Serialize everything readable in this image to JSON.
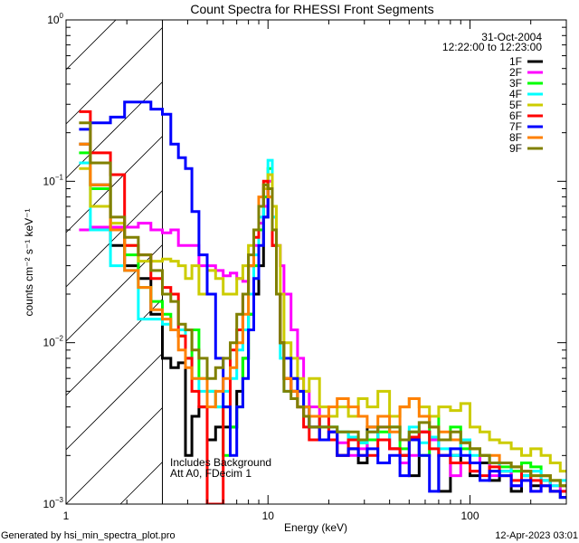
{
  "chart_data": {
    "type": "line",
    "step": true,
    "title": "Count Spectra for RHESSI Front Segments",
    "xlabel": "Energy (keV)",
    "ylabel": "counts cm⁻² s⁻¹ keV⁻¹",
    "xscale": "log",
    "yscale": "log",
    "xlim": [
      1,
      300
    ],
    "ylim": [
      0.001,
      1
    ],
    "xticks": [
      {
        "v": 1,
        "label": "1"
      },
      {
        "v": 10,
        "label": "10"
      },
      {
        "v": 100,
        "label": "100"
      }
    ],
    "yticks": [
      {
        "v": 1,
        "base": "10",
        "exp": "0"
      },
      {
        "v": 0.1,
        "base": "10",
        "exp": "−1"
      },
      {
        "v": 0.01,
        "base": "10",
        "exp": "−2"
      },
      {
        "v": 0.001,
        "base": "10",
        "exp": "−3"
      }
    ],
    "grid": false,
    "hatched_region_keV": [
      1,
      3
    ],
    "legend_position": "top-right",
    "legend_header": [
      "31-Oct-2004",
      "12:22:00 to 12:23:00"
    ],
    "annotations": [
      "Includes Background",
      "Att A0, FDecim 1"
    ],
    "bin_edges_keV": [
      1.16,
      1.32,
      1.66,
      1.95,
      2.28,
      2.63,
      3.0,
      3.3,
      3.6,
      3.9,
      4.2,
      4.55,
      5.0,
      5.5,
      6.0,
      6.5,
      7.0,
      7.5,
      8.0,
      8.5,
      9.0,
      9.5,
      10.0,
      10.5,
      11.0,
      11.5,
      12.0,
      13,
      14,
      15,
      16,
      18,
      20,
      22,
      25,
      28,
      31,
      35,
      40,
      45,
      50,
      56,
      63,
      70,
      80,
      90,
      100,
      112,
      125,
      140,
      160,
      180,
      200,
      225,
      250,
      280,
      300
    ],
    "series": [
      {
        "name": "1F",
        "color": "#000000",
        "values": [
          0.17,
          0.095,
          0.04,
          0.03,
          0.025,
          0.015,
          0.008,
          0.007,
          0.0075,
          0.002,
          0.0035,
          0.004,
          0.0025,
          0.003,
          0.003,
          0.003,
          0.005,
          0.008,
          0.015,
          0.02,
          0.03,
          0.06,
          0.09,
          0.04,
          0.02,
          0.01,
          0.006,
          0.005,
          0.004,
          0.0035,
          0.003,
          0.0025,
          0.0028,
          0.002,
          0.0022,
          0.0018,
          0.003,
          0.0025,
          0.0022,
          0.002,
          0.0015,
          0.0028,
          0.0025,
          0.0012,
          0.002,
          0.0018,
          0.0015,
          0.0018,
          0.0014,
          0.0016,
          0.0012,
          0.0015,
          0.0013,
          0.0014,
          0.0012,
          0.0011
        ]
      },
      {
        "name": "2F",
        "color": "#ff00ff",
        "values": [
          0.05,
          0.052,
          0.052,
          0.052,
          0.055,
          0.05,
          0.048,
          0.05,
          0.04,
          0.04,
          0.04,
          0.03,
          0.03,
          0.028,
          0.026,
          0.027,
          0.025,
          0.024,
          0.03,
          0.04,
          0.055,
          0.07,
          0.1,
          0.06,
          0.04,
          0.03,
          0.02,
          0.012,
          0.008,
          0.005,
          0.004,
          0.003,
          0.0028,
          0.0024,
          0.002,
          0.0022,
          0.0025,
          0.003,
          0.0022,
          0.0018,
          0.002,
          0.0028,
          0.0025,
          0.002,
          0.0015,
          0.0018,
          0.0016,
          0.002,
          0.0015,
          0.0016,
          0.0013,
          0.0014,
          0.0012,
          0.0015,
          0.0013,
          0.0012
        ]
      },
      {
        "name": "3F",
        "color": "#00ff00",
        "values": [
          0.15,
          0.09,
          0.05,
          0.035,
          0.022,
          0.018,
          0.015,
          0.012,
          0.011,
          0.008,
          0.012,
          0.006,
          0.005,
          0.004,
          0.002,
          0.003,
          0.004,
          0.008,
          0.015,
          0.03,
          0.05,
          0.08,
          0.12,
          0.05,
          0.02,
          0.01,
          0.006,
          0.006,
          0.005,
          0.004,
          0.0035,
          0.003,
          0.003,
          0.0028,
          0.0025,
          0.0024,
          0.0025,
          0.0028,
          0.003,
          0.0022,
          0.0028,
          0.002,
          0.0035,
          0.0025,
          0.003,
          0.0022,
          0.0022,
          0.002,
          0.0018,
          0.0017,
          0.0016,
          0.0018,
          0.0017,
          0.0015,
          0.0014,
          0.0013
        ]
      },
      {
        "name": "4F",
        "color": "#00ffff",
        "values": [
          0.13,
          0.05,
          0.03,
          0.028,
          0.014,
          0.014,
          0.013,
          0.012,
          0.012,
          0.008,
          0.006,
          0.005,
          0.005,
          0.004,
          0.005,
          0.006,
          0.009,
          0.012,
          0.02,
          0.035,
          0.06,
          0.09,
          0.135,
          0.06,
          0.02,
          0.008,
          0.005,
          0.005,
          0.004,
          0.004,
          0.0035,
          0.003,
          0.003,
          0.0028,
          0.0026,
          0.0024,
          0.0028,
          0.0025,
          0.003,
          0.0025,
          0.003,
          0.0024,
          0.0026,
          0.0022,
          0.002,
          0.0025,
          0.002,
          0.002,
          0.0018,
          0.0016,
          0.0017,
          0.0015,
          0.0016,
          0.0014,
          0.0013,
          0.0014
        ]
      },
      {
        "name": "5F",
        "color": "#cccc00",
        "values": [
          0.12,
          0.07,
          0.055,
          0.04,
          0.032,
          0.032,
          0.033,
          0.032,
          0.03,
          0.025,
          0.03,
          0.02,
          0.028,
          0.025,
          0.02,
          0.02,
          0.025,
          0.03,
          0.04,
          0.05,
          0.07,
          0.09,
          0.11,
          0.07,
          0.04,
          0.02,
          0.01,
          0.008,
          0.006,
          0.005,
          0.006,
          0.004,
          0.0035,
          0.004,
          0.0035,
          0.0045,
          0.004,
          0.005,
          0.0035,
          0.004,
          0.0045,
          0.004,
          0.0035,
          0.004,
          0.0038,
          0.0042,
          0.003,
          0.0028,
          0.0025,
          0.0024,
          0.0022,
          0.002,
          0.0022,
          0.002,
          0.0018,
          0.0016
        ]
      },
      {
        "name": "6F",
        "color": "#ff0000",
        "values": [
          0.27,
          0.15,
          0.11,
          0.04,
          0.035,
          0.025,
          0.022,
          0.02,
          0.011,
          0.008,
          0.005,
          0.004,
          0.0008,
          0.0008,
          0.004,
          0.009,
          0.012,
          0.02,
          0.03,
          0.045,
          0.07,
          0.1,
          0.08,
          0.04,
          0.02,
          0.01,
          0.006,
          0.005,
          0.004,
          0.003,
          0.0025,
          0.0035,
          0.0025,
          0.002,
          0.0025,
          0.002,
          0.002,
          0.0025,
          0.0022,
          0.002,
          0.0026,
          0.0028,
          0.0022,
          0.002,
          0.0018,
          0.0018,
          0.0016,
          0.0015,
          0.0017,
          0.0015,
          0.0014,
          0.0016,
          0.0014,
          0.0013,
          0.0012,
          0.0012
        ]
      },
      {
        "name": "7F",
        "color": "#0000ff",
        "values": [
          0.21,
          0.23,
          0.25,
          0.31,
          0.31,
          0.28,
          0.26,
          0.17,
          0.14,
          0.12,
          0.065,
          0.035,
          0.02,
          0.008,
          0.004,
          0.002,
          0.004,
          0.006,
          0.012,
          0.025,
          0.04,
          0.06,
          0.09,
          0.05,
          0.02,
          0.01,
          0.008,
          0.006,
          0.005,
          0.004,
          0.003,
          0.0025,
          0.0028,
          0.002,
          0.0022,
          0.002,
          0.0022,
          0.0018,
          0.002,
          0.0015,
          0.0025,
          0.002,
          0.0012,
          0.002,
          0.0022,
          0.002,
          0.0018,
          0.0014,
          0.0016,
          0.0015,
          0.0013,
          0.0014,
          0.0012,
          0.0013,
          0.0012,
          0.0011
        ]
      },
      {
        "name": "8F",
        "color": "#ff8000",
        "values": [
          0.17,
          0.095,
          0.05,
          0.028,
          0.022,
          0.016,
          0.014,
          0.012,
          0.009,
          0.007,
          0.006,
          0.006,
          0.004,
          0.005,
          0.006,
          0.007,
          0.01,
          0.015,
          0.03,
          0.05,
          0.08,
          0.095,
          0.08,
          0.05,
          0.02,
          0.01,
          0.006,
          0.005,
          0.004,
          0.004,
          0.0035,
          0.0035,
          0.004,
          0.0045,
          0.004,
          0.0035,
          0.003,
          0.0035,
          0.0028,
          0.004,
          0.0045,
          0.0035,
          0.003,
          0.0028,
          0.0025,
          0.0024,
          0.0022,
          0.002,
          0.002,
          0.0018,
          0.0017,
          0.0016,
          0.0015,
          0.0015,
          0.0014,
          0.0013
        ]
      },
      {
        "name": "9F",
        "color": "#808000",
        "values": [
          0.23,
          0.13,
          0.06,
          0.045,
          0.035,
          0.028,
          0.02,
          0.018,
          0.013,
          0.012,
          0.009,
          0.008,
          0.006,
          0.007,
          0.008,
          0.01,
          0.015,
          0.02,
          0.035,
          0.05,
          0.07,
          0.095,
          0.09,
          0.05,
          0.02,
          0.01,
          0.005,
          0.0045,
          0.004,
          0.0035,
          0.003,
          0.003,
          0.003,
          0.0028,
          0.0028,
          0.0025,
          0.0028,
          0.003,
          0.003,
          0.0025,
          0.0028,
          0.0032,
          0.003,
          0.0025,
          0.0028,
          0.0024,
          0.0022,
          0.002,
          0.0018,
          0.0018,
          0.0017,
          0.0016,
          0.0015,
          0.0015,
          0.0014,
          0.0013
        ]
      }
    ]
  },
  "footer": {
    "generated_by": "Generated by hsi_min_spectra_plot.pro",
    "date": "12-Apr-2023 03:01"
  }
}
